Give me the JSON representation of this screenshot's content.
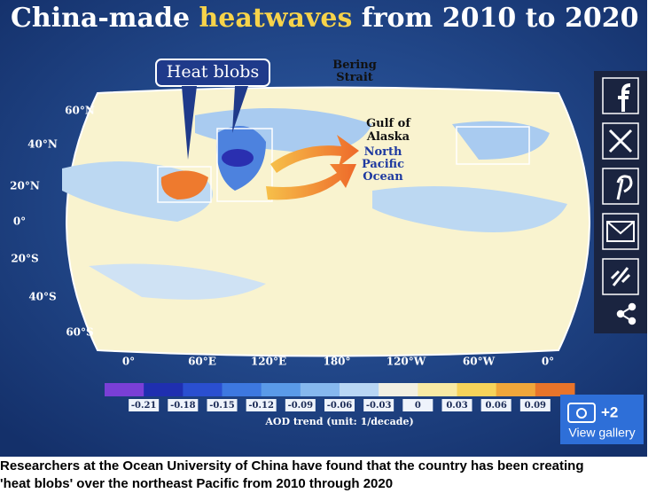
{
  "title": {
    "parts": [
      "China-made ",
      "heatwaves",
      " from 2010 to 2020"
    ]
  },
  "map": {
    "callout": "Heat blobs",
    "labels": [
      "Bering Strait",
      "Gulf of Alaska",
      "North Pacific Ocean"
    ],
    "latitudes": [
      "60°N",
      "40°N",
      "20°N",
      "0°",
      "20°S",
      "40°S",
      "60°S"
    ],
    "longitudes": [
      "0°",
      "60°E",
      "120°E",
      "180°",
      "120°W",
      "60°W",
      "0°"
    ]
  },
  "colorbar": {
    "ticks": [
      "-0.21",
      "-0.18",
      "-0.15",
      "-0.12",
      "-0.09",
      "-0.06",
      "-0.03",
      "0",
      "0.03",
      "0.06",
      "0.09"
    ],
    "colors": [
      "#7a3fd6",
      "#1f2fb0",
      "#2a4fd0",
      "#3d78e0",
      "#5a9ae8",
      "#86b8ee",
      "#b8d6f4",
      "#f2f0e2",
      "#f8eaa4",
      "#f6d35a",
      "#f0a63a",
      "#e8742a"
    ],
    "label": "AOD trend (unit: 1/decade)"
  },
  "gallery": {
    "count": "+2",
    "label": "View gallery"
  },
  "caption": [
    "Researchers at the Ocean University of China have found that the country has been creating",
    "'heat blobs' over the northeast Pacific from 2010 through 2020"
  ]
}
